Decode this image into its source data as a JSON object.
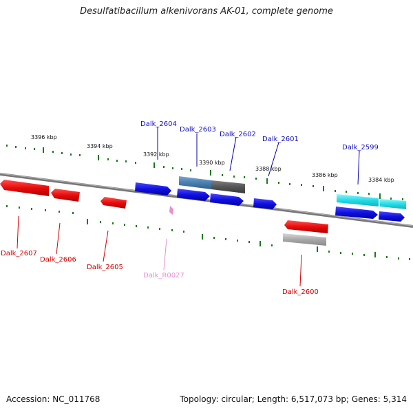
{
  "title": "Desulfatibacillum alkenivorans AK-01, complete genome",
  "footer": {
    "accession": "Accession: NC_011768",
    "summary": "Topology: circular; Length: 6,517,073 bp; Genes: 5,314"
  },
  "colors": {
    "forward_gene": "#1010e0",
    "reverse_gene": "#e81010",
    "rna_gene": "#e68fd0",
    "cyan_feature": "#29dde8",
    "grey_feature": "#9a9a9a",
    "dark_feature": "#555555",
    "steel_feature": "#4a7fb0",
    "ticks": "#1a7a1a",
    "axis": "#7a7a7a"
  },
  "scale_labels": [
    "3396 kbp",
    "3394 kbp",
    "3392 kbp",
    "3390 kbp",
    "3388 kbp",
    "3386 kbp",
    "3384 kbp"
  ],
  "gene_labels": {
    "dalk_2599": "Dalk_2599",
    "dalk_2600": "Dalk_2600",
    "dalk_2601": "Dalk_2601",
    "dalk_2602": "Dalk_2602",
    "dalk_2603": "Dalk_2603",
    "dalk_2604": "Dalk_2604",
    "dalk_2605": "Dalk_2605",
    "dalk_2606": "Dalk_2606",
    "dalk_2607": "Dalk_2607",
    "dalk_r0027": "Dalk_R0027"
  }
}
